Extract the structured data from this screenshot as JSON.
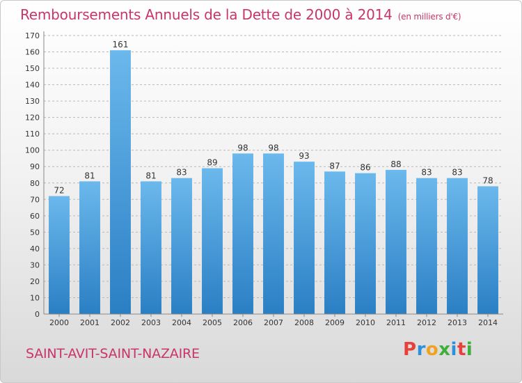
{
  "header": {
    "title": "Remboursements Annuels de la Dette de 2000 à 2014",
    "subtitle": "(en milliers d'€)"
  },
  "footer": {
    "commune": "SAINT-AVIT-SAINT-NAZAIRE",
    "logo_text": "Proxiti",
    "logo_colors": [
      "#e8413c",
      "#2f8fd8",
      "#f0a321",
      "#3fae3a",
      "#2f8fd8",
      "#e8413c",
      "#3fae3a"
    ]
  },
  "colors": {
    "title": "#c8356a",
    "bar_top": "#6bb8ec",
    "bar_bottom": "#2a7fc4",
    "grid": "#b8b8b8",
    "axis_text": "#333333"
  },
  "chart_data": {
    "type": "bar",
    "categories": [
      "2000",
      "2001",
      "2002",
      "2003",
      "2004",
      "2005",
      "2006",
      "2007",
      "2008",
      "2009",
      "2010",
      "2011",
      "2012",
      "2013",
      "2014"
    ],
    "values": [
      72,
      81,
      161,
      81,
      83,
      89,
      98,
      98,
      93,
      87,
      86,
      88,
      83,
      83,
      78
    ],
    "ylim": [
      0,
      170
    ],
    "ytick_step": 10,
    "grid": true,
    "data_labels": true
  }
}
